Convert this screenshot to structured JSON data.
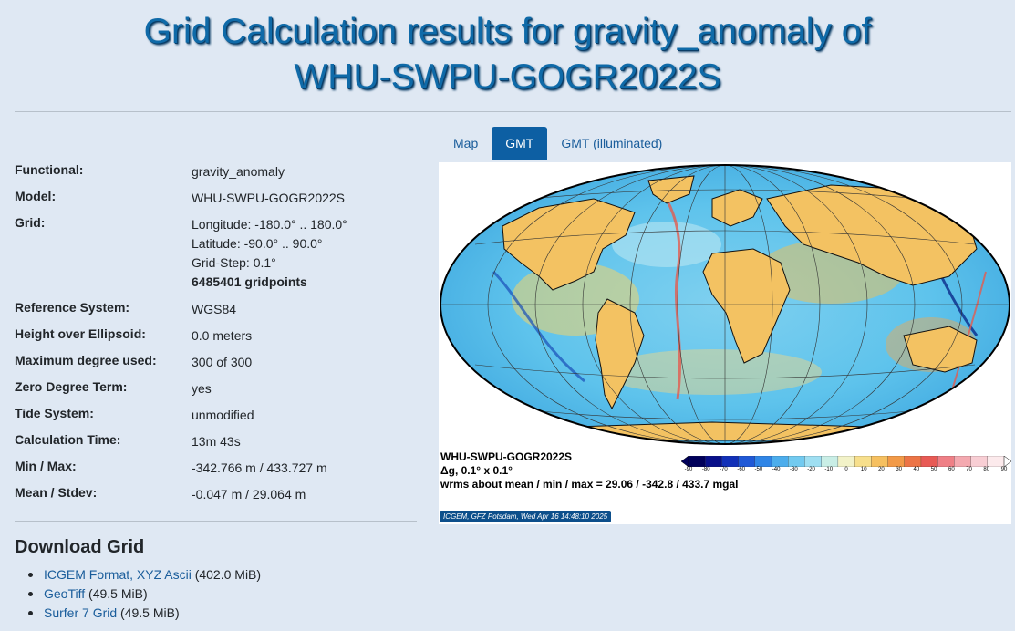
{
  "page": {
    "title_line1": "Grid Calculation results for gravity_anomaly of",
    "title_line2": "WHU-SWPU-GOGR2022S"
  },
  "info": {
    "functional": {
      "label": "Functional:",
      "value": "gravity_anomaly"
    },
    "model": {
      "label": "Model:",
      "value": "WHU-SWPU-GOGR2022S"
    },
    "grid": {
      "label": "Grid:",
      "longitude": "Longitude: -180.0° .. 180.0°",
      "latitude": "Latitude: -90.0° .. 90.0°",
      "step": "Grid-Step: 0.1°",
      "points": "6485401 gridpoints"
    },
    "reference_system": {
      "label": "Reference System:",
      "value": "WGS84"
    },
    "height": {
      "label": "Height over Ellipsoid:",
      "value": "0.0 meters"
    },
    "max_degree": {
      "label": "Maximum degree used:",
      "value": "300 of 300"
    },
    "zero_degree": {
      "label": "Zero Degree Term:",
      "value": "yes"
    },
    "tide": {
      "label": "Tide System:",
      "value": "unmodified"
    },
    "calc_time": {
      "label": "Calculation Time:",
      "value": "13m 43s"
    },
    "minmax": {
      "label": "Min / Max:",
      "value": "-342.766 m / 433.727 m"
    },
    "meanstd": {
      "label": "Mean / Stdev:",
      "value": "-0.047 m / 29.064 m"
    }
  },
  "download": {
    "title": "Download Grid",
    "items": [
      {
        "link": "ICGEM Format, XYZ Ascii",
        "size": " (402.0 MiB)"
      },
      {
        "link": "GeoTiff",
        "size": " (49.5 MiB)"
      },
      {
        "link": "Surfer 7 Grid",
        "size": " (49.5 MiB)"
      }
    ]
  },
  "tabs": {
    "map": "Map",
    "gmt": "GMT",
    "gmt_illuminated": "GMT (illuminated)",
    "active": "GMT"
  },
  "map": {
    "model": "WHU-SWPU-GOGR2022S",
    "resolution": "Δg, 0.1° x 0.1°",
    "stats": "wrms about mean / min / max = 29.06 / -342.8 / 433.7 mgal",
    "stamp": "ICGEM, GFZ Potsdam, Wed Apr 16 14:48:10 2025",
    "colorbar_ticks": [
      "-90",
      "-80",
      "-70",
      "-60",
      "-50",
      "-40",
      "-30",
      "-20",
      "-10",
      "0",
      "10",
      "20",
      "30",
      "40",
      "50",
      "60",
      "70",
      "80",
      "90"
    ],
    "colorbar_colors": [
      "#00005a",
      "#08108a",
      "#1230b8",
      "#1f58d6",
      "#2f85e6",
      "#4cadec",
      "#72caf0",
      "#9fdff2",
      "#c9eee6",
      "#f2f2c8",
      "#f7df8c",
      "#f6c060",
      "#f29a48",
      "#ec7446",
      "#e85a55",
      "#ef7f86",
      "#f4a9b0",
      "#f8ced4",
      "#fceaec"
    ]
  }
}
